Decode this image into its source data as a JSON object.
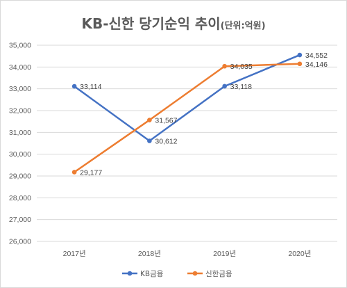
{
  "chart_data": {
    "type": "line",
    "title": "KB-신한 당기순익 추이",
    "subtitle": "(단위:억원)",
    "xlabel": "",
    "ylabel": "",
    "categories": [
      "2017년",
      "2018년",
      "2019년",
      "2020년"
    ],
    "ylim": [
      26000,
      35000
    ],
    "ystep": 1000,
    "grid": true,
    "legend": "bottom",
    "series": [
      {
        "name": "KB금융",
        "color": "#4472c4",
        "values": [
          33114,
          30612,
          33118,
          34552
        ],
        "labels": [
          "33,114",
          "30,612",
          "33,118",
          "34,552"
        ]
      },
      {
        "name": "신한금융",
        "color": "#ed7d31",
        "values": [
          29177,
          31567,
          34035,
          34146
        ],
        "labels": [
          "29,177",
          "31,567",
          "34,035",
          "34,146"
        ]
      }
    ]
  }
}
